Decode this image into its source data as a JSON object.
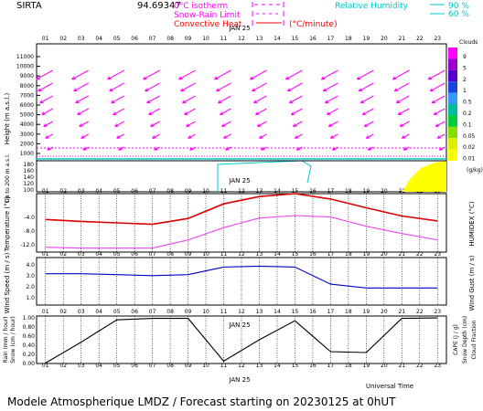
{
  "header": {
    "site": "SIRTA",
    "station_code": "94.69347",
    "zero_iso": "0°C isotherm",
    "snow_rain": "Snow-Rain Limit",
    "convective": "Convective Heat",
    "convective_units": "(°C/minute)",
    "rh_label": "Relative Humidity",
    "rh_90": "90 %",
    "rh_60": "60 %",
    "clouds_label": "Clouds",
    "ice_label": "(g/kg)",
    "colors": {
      "zero_iso": "#ff00ff",
      "snow_rain": "#ff00ff",
      "convective": "#ff0000",
      "rh": "#00dddd"
    }
  },
  "hours": [
    "01",
    "02",
    "03",
    "04",
    "05",
    "06",
    "07",
    "08",
    "09",
    "10",
    "11",
    "12",
    "13",
    "14",
    "15",
    "16",
    "17",
    "18",
    "19",
    "20",
    "21",
    "22",
    "23"
  ],
  "date_label": "JAN 25",
  "wind_panel": {
    "ylabel": "Height  (m a.s.l.)",
    "yticks": [
      "11000",
      "10000",
      "9000",
      "8000",
      "7000",
      "6000",
      "5000",
      "4000",
      "3000",
      "2000",
      "1000"
    ],
    "low_ylabel": "Up to 200 m a.s.l.",
    "low_yticks": [
      "180",
      "160",
      "140",
      "120",
      "100"
    ],
    "zero_level": "1000",
    "arrow_color": "#ff00ff"
  },
  "cloud_scale": {
    "labels": [
      "9",
      "5",
      "2",
      "1",
      "0.5",
      "0.2",
      "0.1",
      "0.05",
      "0.02",
      "0.01"
    ],
    "colors": [
      "#ff00ff",
      "#9900cc",
      "#5500cc",
      "#1c44dd",
      "#3399ff",
      "#00bb99",
      "#00cc33",
      "#88dd00",
      "#ddee00",
      "#ffff00"
    ]
  },
  "temp_panel": {
    "ylabel": "Temperature (°C)",
    "ylabel_right": "HUMIDEX (°C)",
    "yticks": [
      "-4.0",
      "-8.0",
      "-12.0"
    ]
  },
  "wind_speed_panel": {
    "ylabel": "Wind Speed (m / s)",
    "ylabel_right": "Wind Gust (m / s)",
    "yticks": [
      "4.0",
      "3.0",
      "2.0",
      "1.0"
    ]
  },
  "precip_panel": {
    "ylabel_a": "Rain (mm / hour)",
    "ylabel_b": "Snow (cm / hour)",
    "ylabel_right_a": "CAPE (J / g)",
    "ylabel_right_b": "Snow Depth (cm)",
    "ylabel_right_c": "Cloud Fraction",
    "yticks": [
      "1.00",
      "0.80",
      "0.60",
      "0.40",
      "0.20",
      "0.00"
    ],
    "xlabel": "Universal Time"
  },
  "footer": "Modele Atmospherique LMDZ / Forecast starting on 20230125 at 0hUT",
  "chart_data": [
    {
      "type": "line",
      "title": "Temperature",
      "x": [
        1,
        3,
        5,
        7,
        9,
        11,
        13,
        15,
        17,
        19,
        21,
        23
      ],
      "series": [
        {
          "name": "Temperature",
          "color": "#dd0000",
          "values": [
            -5.3,
            -5.7,
            -6.0,
            -6.3,
            -5.1,
            -2.1,
            -0.6,
            0.0,
            -1.1,
            -2.9,
            -4.6,
            -5.6
          ]
        },
        {
          "name": "HUMIDEX",
          "color": "#ee44ee",
          "values": [
            -11.0,
            -11.2,
            -11.2,
            -11.2,
            -9.5,
            -7.0,
            -5.0,
            -4.5,
            -4.8,
            -6.7,
            -8.2,
            -9.5
          ]
        }
      ],
      "ylim": [
        -12,
        0
      ]
    },
    {
      "type": "line",
      "title": "Wind Speed",
      "x": [
        1,
        3,
        5,
        7,
        9,
        11,
        13,
        15,
        17,
        19,
        21,
        23
      ],
      "series": [
        {
          "name": "Wind Speed",
          "color": "#0000cc",
          "values": [
            3.3,
            3.3,
            3.2,
            3.1,
            3.2,
            4.0,
            4.1,
            4.0,
            2.2,
            1.8,
            1.8,
            1.8
          ]
        }
      ],
      "ylim": [
        0,
        5
      ]
    },
    {
      "type": "line",
      "title": "Cloud Fraction",
      "x": [
        1,
        3,
        5,
        7,
        9,
        11,
        13,
        15,
        17,
        19,
        21,
        23
      ],
      "series": [
        {
          "name": "Cloud Fraction",
          "color": "#000000",
          "values": [
            0.01,
            0.45,
            0.92,
            0.95,
            0.95,
            0.05,
            0.5,
            0.9,
            0.25,
            0.23,
            0.95,
            0.96
          ]
        }
      ],
      "ylim": [
        0,
        1
      ]
    }
  ]
}
